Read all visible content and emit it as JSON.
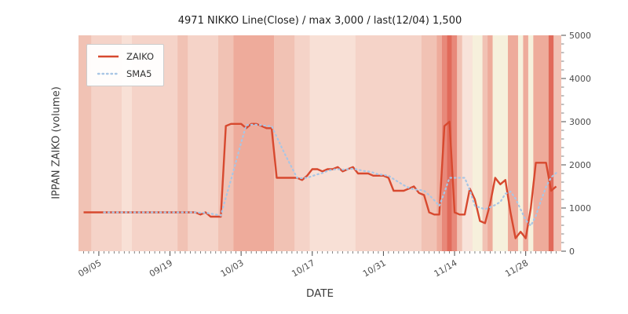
{
  "chart_data": {
    "type": "line",
    "title": "4971 NIKKO Line(Close) / max 3,000 / last(12/04) 1,500",
    "xlabel": "DATE",
    "ylabel": "IPPAN ZAIKO (volume)",
    "ylim": [
      0,
      5000
    ],
    "y_ticks": [
      0,
      1000,
      2000,
      3000,
      4000,
      5000
    ],
    "x_ticks": [
      "09/05",
      "09/19",
      "10/03",
      "10/17",
      "10/31",
      "11/14",
      "11/28"
    ],
    "legend_position": "upper left",
    "grid": false,
    "tick_color": "#4d4d4d",
    "dates": [
      "09/02",
      "09/03",
      "09/04",
      "09/05",
      "09/06",
      "09/07",
      "09/08",
      "09/09",
      "09/10",
      "09/11",
      "09/12",
      "09/13",
      "09/14",
      "09/15",
      "09/16",
      "09/17",
      "09/18",
      "09/19",
      "09/20",
      "09/21",
      "09/22",
      "09/23",
      "09/24",
      "09/25",
      "09/26",
      "09/27",
      "09/28",
      "09/29",
      "09/30",
      "10/01",
      "10/02",
      "10/03",
      "10/04",
      "10/05",
      "10/06",
      "10/07",
      "10/08",
      "10/09",
      "10/10",
      "10/11",
      "10/12",
      "10/13",
      "10/14",
      "10/15",
      "10/16",
      "10/17",
      "10/18",
      "10/19",
      "10/20",
      "10/21",
      "10/22",
      "10/23",
      "10/24",
      "10/25",
      "10/26",
      "10/27",
      "10/28",
      "10/29",
      "10/30",
      "10/31",
      "11/01",
      "11/02",
      "11/03",
      "11/04",
      "11/05",
      "11/06",
      "11/07",
      "11/08",
      "11/09",
      "11/10",
      "11/11",
      "11/12",
      "11/13",
      "11/14",
      "11/15",
      "11/16",
      "11/17",
      "11/18",
      "11/19",
      "11/20",
      "11/21",
      "11/22",
      "11/23",
      "11/24",
      "11/25",
      "11/26",
      "11/27",
      "11/28",
      "11/29",
      "11/30",
      "12/01",
      "12/02",
      "12/03",
      "12/04"
    ],
    "series": [
      {
        "name": "ZAIKO",
        "color": "#d7492f",
        "line_style": "solid",
        "line_width": 2.4,
        "values": [
          900,
          900,
          900,
          900,
          900,
          900,
          900,
          900,
          900,
          900,
          900,
          900,
          900,
          900,
          900,
          900,
          900,
          900,
          900,
          900,
          900,
          900,
          900,
          850,
          900,
          800,
          800,
          800,
          2900,
          2950,
          2950,
          2950,
          2850,
          2950,
          2950,
          2900,
          2850,
          2850,
          1700,
          1700,
          1700,
          1700,
          1700,
          1650,
          1750,
          1900,
          1900,
          1850,
          1900,
          1900,
          1950,
          1850,
          1900,
          1950,
          1800,
          1800,
          1800,
          1750,
          1750,
          1750,
          1700,
          1400,
          1400,
          1400,
          1450,
          1500,
          1350,
          1300,
          900,
          850,
          850,
          2900,
          3000,
          900,
          850,
          850,
          1450,
          1200,
          700,
          650,
          1100,
          1700,
          1550,
          1650,
          900,
          300,
          450,
          300,
          1000,
          2050,
          2050,
          2050,
          1400,
          1500
        ]
      },
      {
        "name": "SMA5",
        "color": "#a8c6e5",
        "line_style": "dotted",
        "line_width": 2.2,
        "derived": "moving_average_of_ZAIKO",
        "window": 5
      }
    ],
    "background": {
      "base_color": "#f5d3c8",
      "bands": [
        {
          "from": null,
          "to": "09/04",
          "color": "#f1c2b4"
        },
        {
          "from": "09/10",
          "to": "09/12",
          "color": "#f8e0d6"
        },
        {
          "from": "09/21",
          "to": "09/23",
          "color": "#f1c2b4"
        },
        {
          "from": "09/29",
          "to": "10/02",
          "color": "#f1c2b4"
        },
        {
          "from": "10/02",
          "to": "10/10",
          "color": "#eeab9b"
        },
        {
          "from": "10/10",
          "to": "10/14",
          "color": "#f1c2b4"
        },
        {
          "from": "10/17",
          "to": "10/26",
          "color": "#f8e0d6"
        },
        {
          "from": "11/08",
          "to": "11/11",
          "color": "#f1c2b4"
        },
        {
          "from": "11/11",
          "to": "11/12",
          "color": "#eeab9b"
        },
        {
          "from": "11/12",
          "to": "11/13",
          "color": "#e8897a"
        },
        {
          "from": "11/13",
          "to": "11/14",
          "color": "#e16a5a"
        },
        {
          "from": "11/14",
          "to": "11/15",
          "color": "#e8897a"
        },
        {
          "from": "11/15",
          "to": "11/16",
          "color": "#f1c2b4"
        },
        {
          "from": "11/16",
          "to": "11/18",
          "color": "#f8e3da"
        },
        {
          "from": "11/18",
          "to": "11/20",
          "color": "#f6f0dc"
        },
        {
          "from": "11/20",
          "to": "11/21",
          "color": "#f1c2b4"
        },
        {
          "from": "11/21",
          "to": "11/22",
          "color": "#eeab9b"
        },
        {
          "from": "11/22",
          "to": "11/25",
          "color": "#f6f0dc"
        },
        {
          "from": "11/25",
          "to": "11/27",
          "color": "#eeab9b"
        },
        {
          "from": "11/27",
          "to": "11/28",
          "color": "#f6f0dc"
        },
        {
          "from": "11/28",
          "to": "11/29",
          "color": "#eeab9b"
        },
        {
          "from": "11/29",
          "to": "11/30",
          "color": "#f6f0dc"
        },
        {
          "from": "11/30",
          "to": "12/03",
          "color": "#eeab9b"
        },
        {
          "from": "12/03",
          "to": "12/04",
          "color": "#e16a5a"
        },
        {
          "from": "12/04",
          "to": null,
          "color": "#f1c2b4"
        }
      ]
    }
  }
}
